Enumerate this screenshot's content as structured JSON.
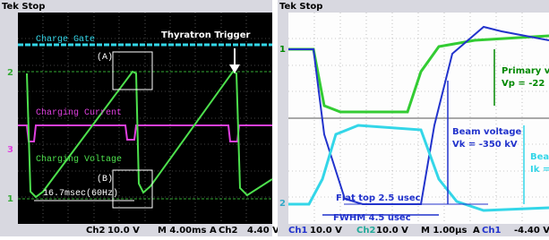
{
  "left": {
    "header": "Tek Stop",
    "labels": {
      "charge_gate": "Charge Gate",
      "trigger": "Thyratron Trigger",
      "a": "(A)",
      "charging_current": "Charging Current",
      "charging_voltage": "Charging Voltage",
      "b": "(B)",
      "period": "16.7msec(60Hz)"
    },
    "markers": [
      "2",
      "3",
      "1"
    ],
    "status": [
      "Ch2",
      "10.0 V",
      "M 4.00ms",
      "A",
      "Ch2",
      "4.40 V"
    ]
  },
  "right": {
    "header": "Tek Stop",
    "labels": {
      "primary": "Primary v",
      "vp": "Vp = -22",
      "beam_voltage": "Beam voltage",
      "vk": "Vk = -350 kV",
      "beam_current": "Bea",
      "ik": "Ik =",
      "flat_top": "Flat top 2.5 usec",
      "fwhm": "FWHM 4.5 usec"
    },
    "markers": [
      "1",
      "2"
    ],
    "status": [
      "Ch1",
      "10.0 V",
      "Ch2",
      "10.0 V",
      "M 1.00µs",
      "A",
      "Ch1",
      "-4.40 V"
    ]
  }
}
